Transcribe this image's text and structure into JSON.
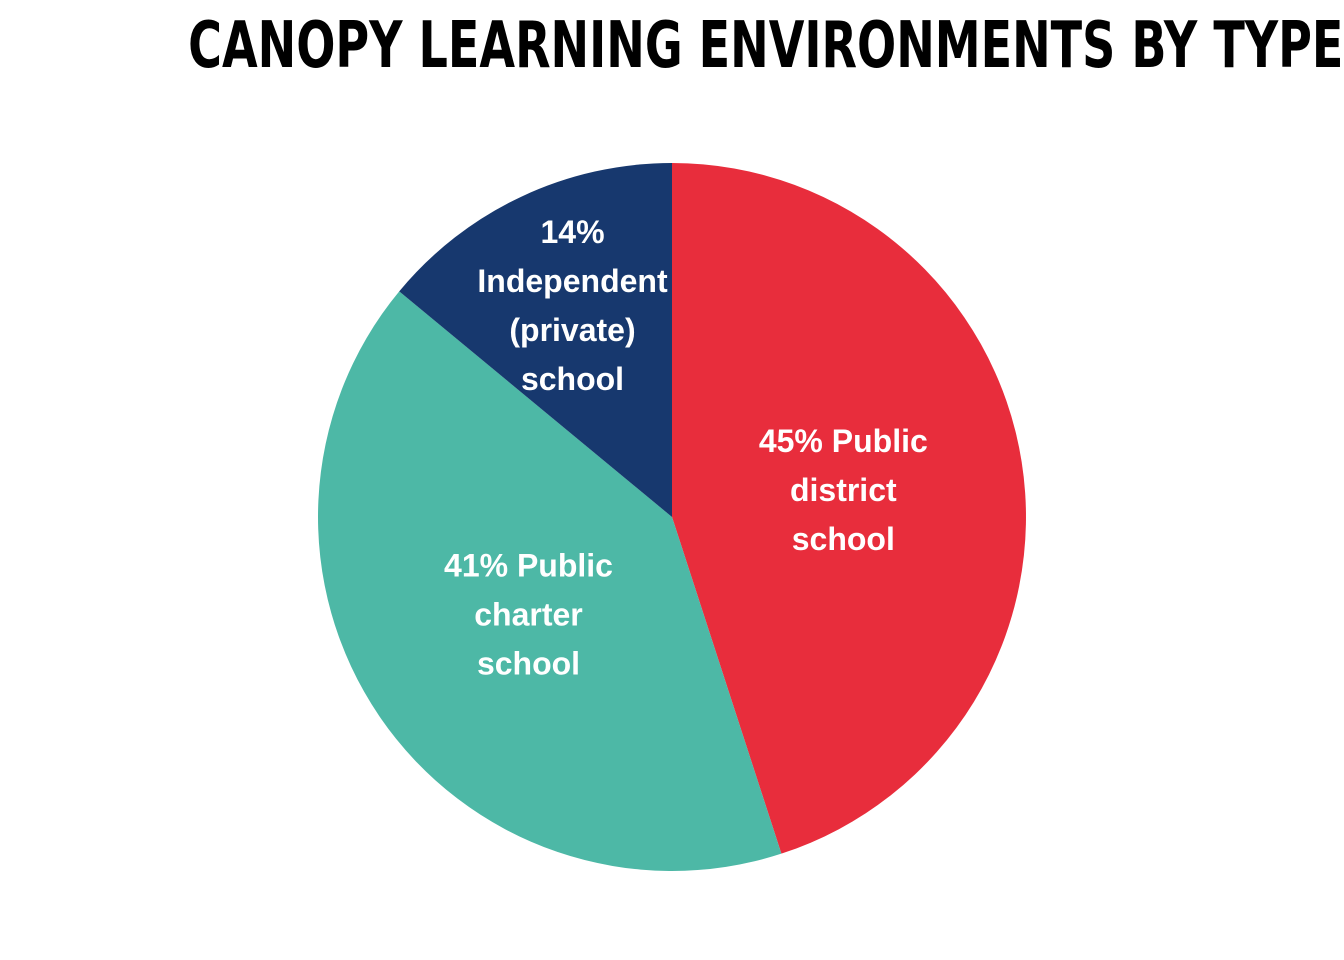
{
  "chart_data": {
    "type": "pie",
    "title": "CANOPY LEARNING ENVIRONMENTS BY TYPE",
    "start_angle_deg": 0,
    "direction": "clockwise",
    "slices": [
      {
        "value": 45,
        "color": "#E82D3C",
        "label_lines": [
          "45% Public",
          "district",
          "school"
        ]
      },
      {
        "value": 41,
        "color": "#4DB8A6",
        "label_lines": [
          "41% Public",
          "charter",
          "school"
        ]
      },
      {
        "value": 14,
        "color": "#17386E",
        "label_lines": [
          "14%",
          "Independent",
          "(private)",
          "school"
        ]
      }
    ]
  }
}
